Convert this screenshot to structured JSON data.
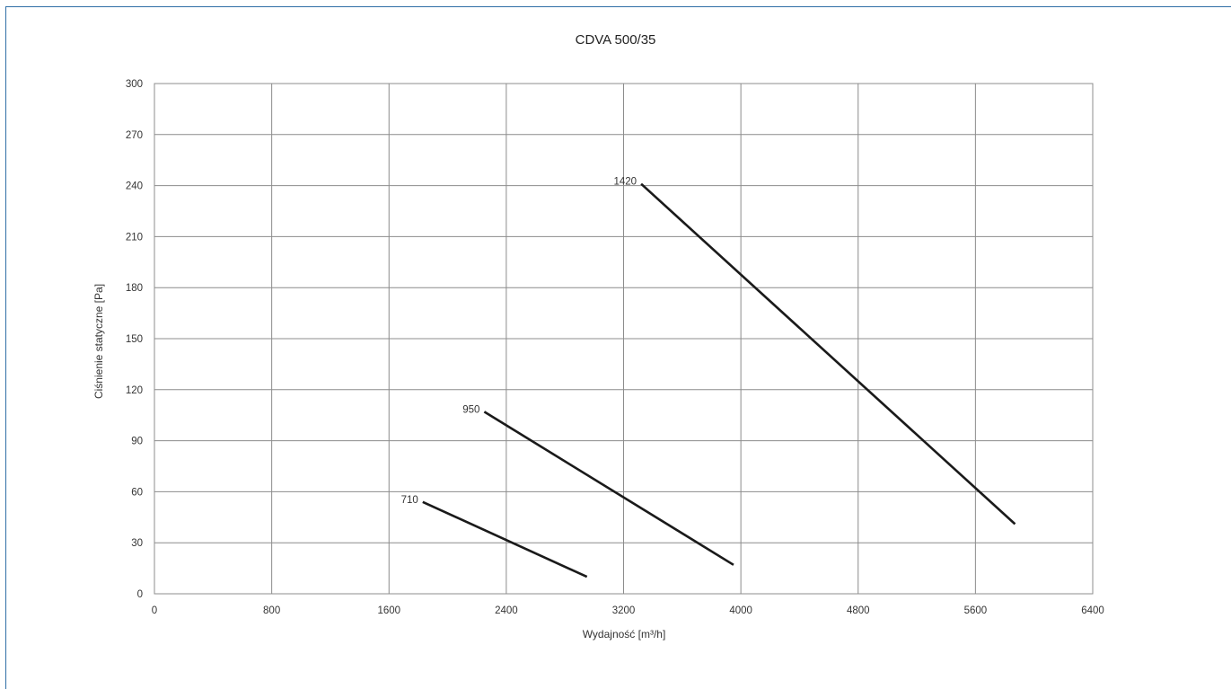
{
  "chart_data": {
    "type": "line",
    "title": "CDVA 500/35",
    "xlabel": "Wydajność [m³/h]",
    "ylabel": "Ciśnienie statyczne [Pa]",
    "xlim": [
      0,
      6400
    ],
    "ylim": [
      0,
      300
    ],
    "xticks": [
      0,
      800,
      1600,
      2400,
      3200,
      4000,
      4800,
      5600,
      6400
    ],
    "yticks": [
      0,
      30,
      60,
      90,
      120,
      150,
      180,
      210,
      240,
      270,
      300
    ],
    "grid": true,
    "colors": {
      "line": "#1a1a1a",
      "grid": "#8c8c8c",
      "frame": "#2f6fa6"
    },
    "series": [
      {
        "name": "710",
        "x": [
          1830,
          2950
        ],
        "y": [
          54,
          10
        ]
      },
      {
        "name": "950",
        "x": [
          2250,
          3950
        ],
        "y": [
          107,
          17
        ]
      },
      {
        "name": "1420",
        "x": [
          3320,
          5870
        ],
        "y": [
          241,
          41
        ]
      }
    ]
  }
}
